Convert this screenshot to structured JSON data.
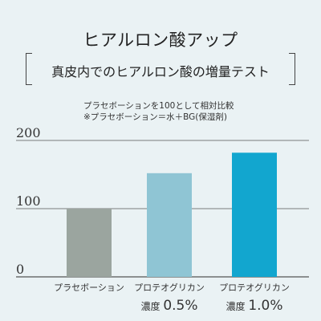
{
  "header": {
    "title": "ヒアルロン酸アップ",
    "subtitle": "真皮内でのヒアルロン酸の増量テスト"
  },
  "notes": {
    "line1": "プラセボーションを100として相対比較",
    "line2": "※プラセボーション＝水＋BG(保湿剤)"
  },
  "chart_data": {
    "type": "bar",
    "categories": [
      "プラセボーション",
      "プロテオグリカン 濃度 0.5%",
      "プロテオグリカン 濃度 1.0%"
    ],
    "category_lines": [
      {
        "line1": "プラセボーション",
        "line2": "",
        "line2_value": ""
      },
      {
        "line1": "プロテオグリカン",
        "line2": "濃度",
        "line2_value": "0.5%"
      },
      {
        "line1": "プロテオグリカン",
        "line2": "濃度",
        "line2_value": "1.0%"
      }
    ],
    "values": [
      100,
      152,
      182
    ],
    "colors": [
      "#9ba59f",
      "#8fc5d4",
      "#12a6cf"
    ],
    "yticks": [
      "0",
      "100",
      "200"
    ],
    "ylim": [
      0,
      200
    ],
    "gridlines": true
  }
}
